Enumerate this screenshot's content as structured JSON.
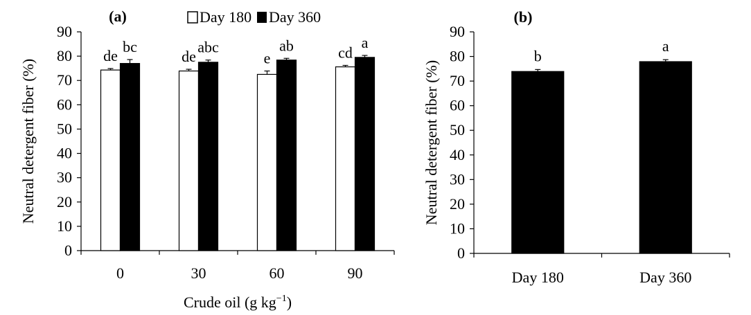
{
  "chart_data": [
    {
      "type": "bar",
      "panel_label": "(a)",
      "categories": [
        "0",
        "30",
        "60",
        "90"
      ],
      "series": [
        {
          "name": "Day 180",
          "color": "#ffffff",
          "values": [
            74.3,
            73.9,
            72.5,
            75.6
          ],
          "errors": [
            0.6,
            0.7,
            1.4,
            0.6
          ]
        },
        {
          "name": "Day 360",
          "color": "#000000",
          "values": [
            77.0,
            77.5,
            78.4,
            79.5
          ],
          "errors": [
            1.6,
            0.9,
            0.7,
            0.8
          ]
        }
      ],
      "significance_letters": [
        [
          "de",
          "bc"
        ],
        [
          "de",
          "abc"
        ],
        [
          "e",
          "ab"
        ],
        [
          "cd",
          "a"
        ]
      ],
      "ylabel": "Neutral detergent fiber (%)",
      "xlabel_main": "Crude oil (g kg",
      "xlabel_sup": "−1",
      "xlabel_end": ")",
      "ylim": [
        0,
        90
      ],
      "yticks": [
        0,
        10,
        20,
        30,
        40,
        50,
        60,
        70,
        80,
        90
      ],
      "legend": [
        "Day 180",
        "Day 360"
      ],
      "grid": false
    },
    {
      "type": "bar",
      "panel_label": "(b)",
      "categories": [
        "Day 180",
        "Day 360"
      ],
      "values": [
        73.9,
        77.9
      ],
      "errors": [
        0.8,
        0.8
      ],
      "color": "#000000",
      "significance_letters": [
        "b",
        "a"
      ],
      "ylabel": "Neutral detergent fiber (%)",
      "xlabel": "",
      "ylim": [
        0,
        90
      ],
      "yticks": [
        0,
        10,
        20,
        30,
        40,
        50,
        60,
        70,
        80,
        90
      ],
      "grid": false
    }
  ]
}
